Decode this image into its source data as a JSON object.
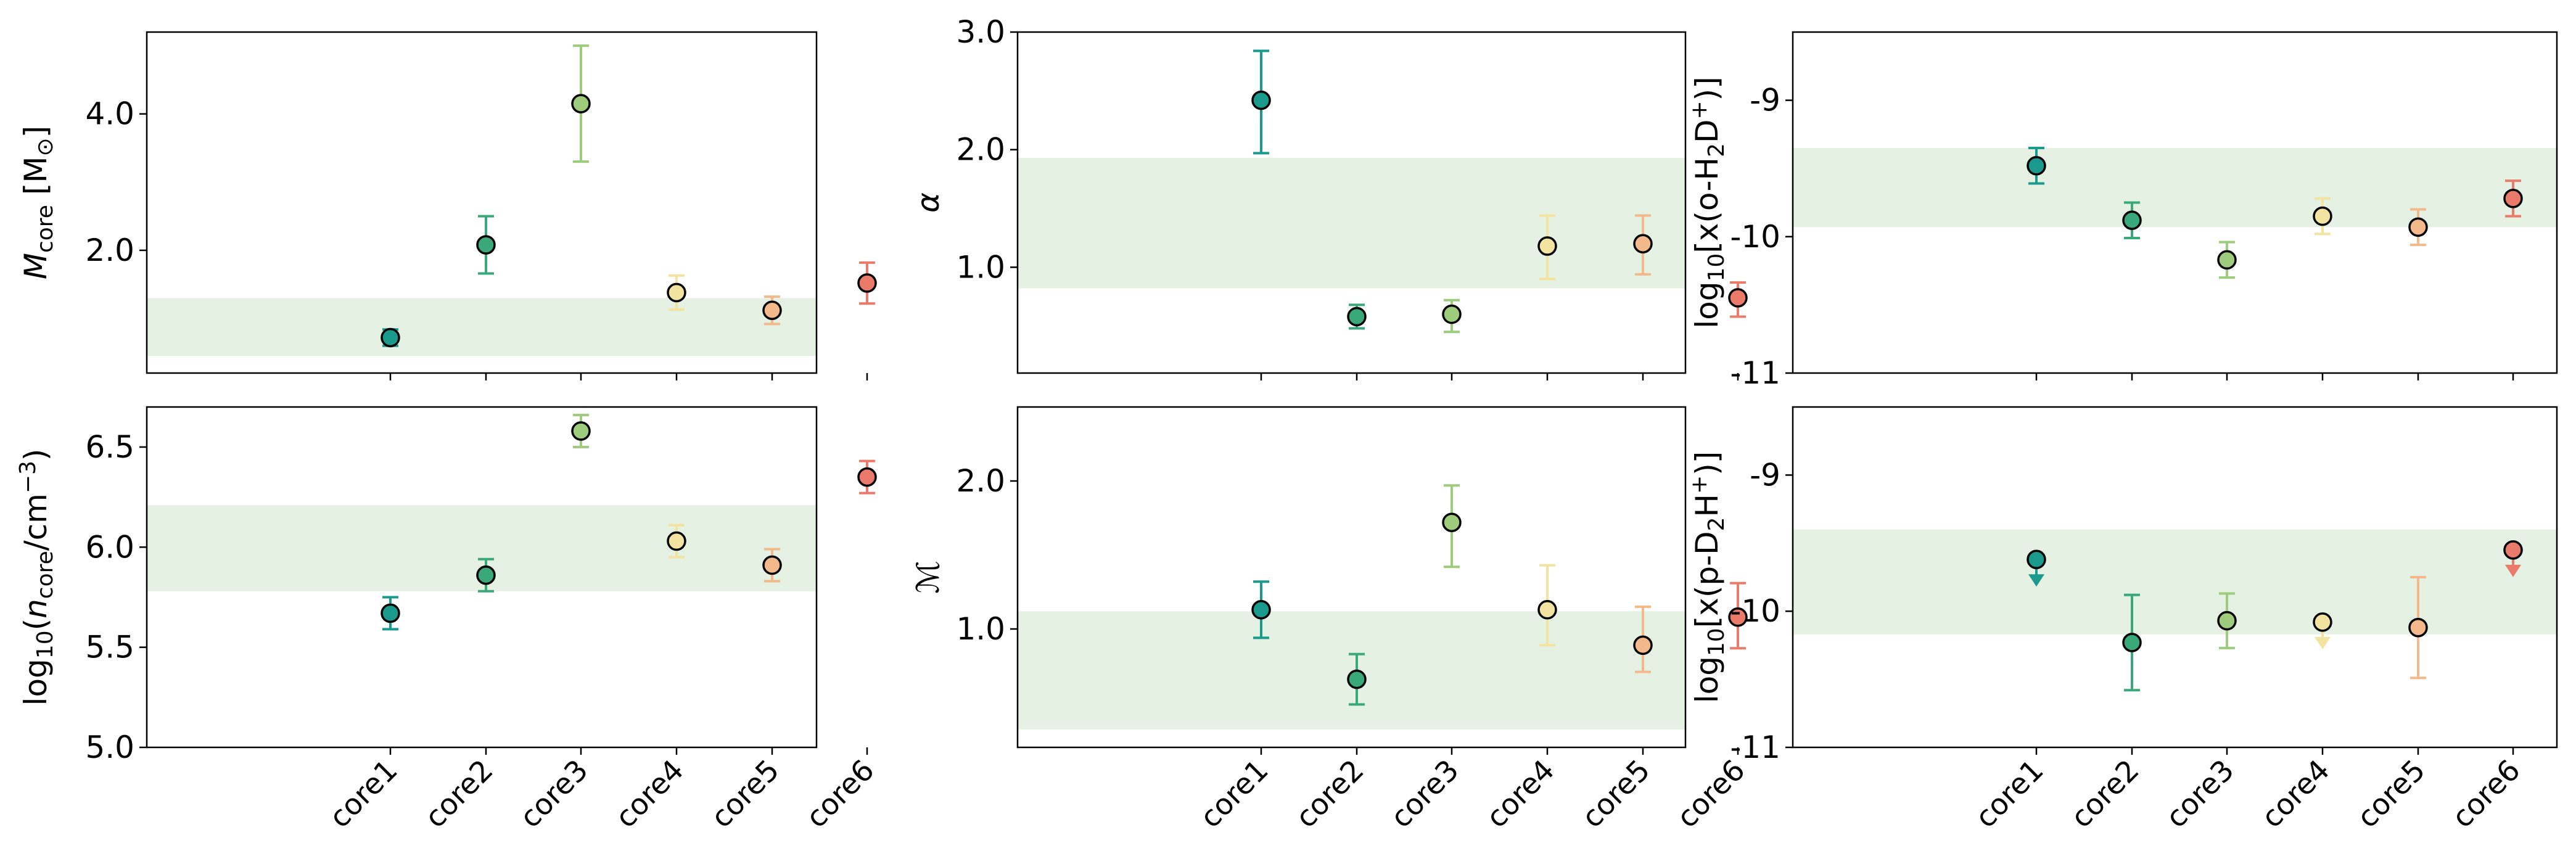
{
  "categories": [
    "core1",
    "core2",
    "core3",
    "core4",
    "core5",
    "core6"
  ],
  "colors": {
    "cores": [
      "#1a9a8c",
      "#3aa97a",
      "#9ccc7c",
      "#f2e3a0",
      "#f4b98b",
      "#ea7b6b"
    ],
    "band": "#e5f1e3",
    "marker_edge": "#000000"
  },
  "chart_data": [
    {
      "id": "mcore",
      "type": "scatter",
      "ylabel_main": "M",
      "ylabel_sub": "core",
      "ylabel_unit_prefix": " [M",
      "ylabel_unit_sub": "⊙",
      "ylabel_unit_suffix": "]",
      "ylim": [
        0.2,
        5.2
      ],
      "yticks": [
        2.0,
        4.0
      ],
      "ytick_labels": [
        "2.0",
        "4.0"
      ],
      "band": [
        0.45,
        1.3
      ],
      "values": [
        0.72,
        2.08,
        4.15,
        1.38,
        1.12,
        1.52
      ],
      "err_lo": [
        0.12,
        0.42,
        0.85,
        0.25,
        0.2,
        0.3
      ],
      "err_hi": [
        0.12,
        0.42,
        0.85,
        0.25,
        0.2,
        0.3
      ],
      "upper_limit": [
        false,
        false,
        false,
        false,
        false,
        false
      ]
    },
    {
      "id": "alpha",
      "type": "scatter",
      "ylabel_main": "α",
      "ylim": [
        0.1,
        3.0
      ],
      "yticks": [
        1.0,
        2.0,
        3.0
      ],
      "ytick_labels": [
        "1.0",
        "2.0",
        "3.0"
      ],
      "band": [
        0.82,
        1.93
      ],
      "values": [
        2.42,
        0.58,
        0.6,
        1.18,
        1.2,
        0.74
      ],
      "err_lo": [
        0.45,
        0.1,
        0.15,
        0.28,
        0.26,
        0.16
      ],
      "err_hi": [
        0.42,
        0.1,
        0.12,
        0.26,
        0.24,
        0.13
      ],
      "upper_limit": [
        false,
        false,
        false,
        false,
        false,
        false
      ]
    },
    {
      "id": "oh2d",
      "type": "scatter",
      "ylabel_text_1": "log",
      "ylabel_text_1_sub": "10",
      "ylabel_text_2": "[x(o-H",
      "ylabel_text_2_sub": "2",
      "ylabel_text_3": "D",
      "ylabel_text_3_sup": "+",
      "ylabel_text_4": ")]",
      "ylim": [
        -11.0,
        -8.5
      ],
      "yticks": [
        -11.0,
        -10.0,
        -9.0
      ],
      "ytick_labels": [
        "-11",
        "-10",
        "-9"
      ],
      "band": [
        -9.93,
        -9.35
      ],
      "values": [
        -9.48,
        -9.88,
        -10.17,
        -9.85,
        -9.93,
        -9.72
      ],
      "err_lo": [
        0.13,
        0.13,
        0.13,
        0.13,
        0.13,
        0.13
      ],
      "err_hi": [
        0.13,
        0.13,
        0.13,
        0.13,
        0.13,
        0.13
      ],
      "upper_limit": [
        false,
        false,
        false,
        false,
        false,
        false
      ]
    },
    {
      "id": "ncore",
      "type": "scatter",
      "ylabel_text_1": "log",
      "ylabel_text_1_sub": "10",
      "ylabel_text_2": "(n",
      "ylabel_text_2_sub": "core",
      "ylabel_text_3": "/cm",
      "ylabel_text_3_sup": "−3",
      "ylabel_text_4": ")",
      "ylim": [
        5.0,
        6.7
      ],
      "yticks": [
        5.0,
        5.5,
        6.0,
        6.5
      ],
      "ytick_labels": [
        "5.0",
        "5.5",
        "6.0",
        "6.5"
      ],
      "band": [
        5.78,
        6.21
      ],
      "values": [
        5.67,
        5.86,
        6.58,
        6.03,
        5.91,
        6.35
      ],
      "err_lo": [
        0.08,
        0.08,
        0.08,
        0.08,
        0.08,
        0.08
      ],
      "err_hi": [
        0.08,
        0.08,
        0.08,
        0.08,
        0.08,
        0.08
      ],
      "upper_limit": [
        false,
        false,
        false,
        false,
        false,
        false
      ]
    },
    {
      "id": "mach",
      "type": "scatter",
      "ylabel_main": "ℳ",
      "ylim": [
        0.2,
        2.5
      ],
      "yticks": [
        1.0,
        2.0
      ],
      "ytick_labels": [
        "1.0",
        "2.0"
      ],
      "band": [
        0.32,
        1.12
      ],
      "values": [
        1.13,
        0.66,
        1.72,
        1.13,
        0.89,
        1.08
      ],
      "err_lo": [
        0.19,
        0.17,
        0.3,
        0.24,
        0.18,
        0.21
      ],
      "err_hi": [
        0.19,
        0.17,
        0.25,
        0.3,
        0.26,
        0.23
      ],
      "upper_limit": [
        false,
        false,
        false,
        false,
        false,
        false
      ]
    },
    {
      "id": "pd2h",
      "type": "scatter",
      "ylabel_text_1": "log",
      "ylabel_text_1_sub": "10",
      "ylabel_text_2": "[x(p-D",
      "ylabel_text_2_sub": "2",
      "ylabel_text_3": "H",
      "ylabel_text_3_sup": "+",
      "ylabel_text_4": ")]",
      "ylim": [
        -11.0,
        -8.5
      ],
      "yticks": [
        -11.0,
        -10.0,
        -9.0
      ],
      "ytick_labels": [
        "-11",
        "-10",
        "-9"
      ],
      "band": [
        -10.17,
        -9.4
      ],
      "values": [
        -9.62,
        -10.23,
        -10.07,
        -10.08,
        -10.12,
        -9.55
      ],
      "err_lo": [
        0,
        0.35,
        0.2,
        0,
        0.37,
        0
      ],
      "err_hi": [
        0,
        0.35,
        0.2,
        0,
        0.37,
        0
      ],
      "upper_limit": [
        true,
        false,
        false,
        true,
        false,
        true
      ]
    }
  ]
}
